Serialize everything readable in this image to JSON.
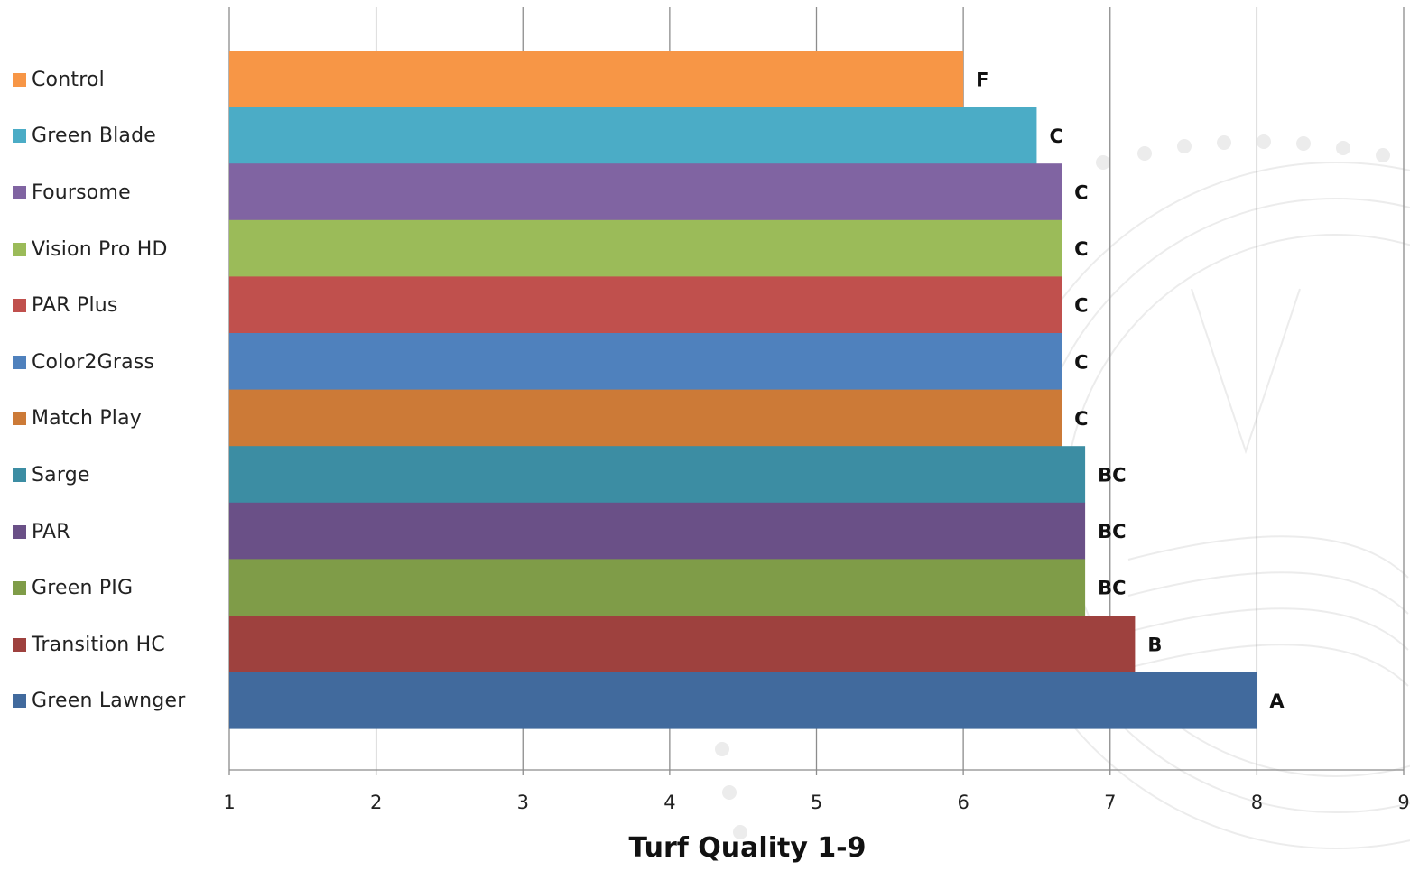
{
  "chart_data": {
    "type": "bar",
    "orientation": "horizontal",
    "title": "",
    "xlabel": "Turf Quality 1-9",
    "ylabel": "",
    "xlim": [
      1,
      9
    ],
    "x_ticks": [
      "1",
      "2",
      "3",
      "4",
      "5",
      "6",
      "7",
      "8",
      "9"
    ],
    "grid": "vertical",
    "legend_position": "left",
    "series": [
      {
        "name": "Control",
        "value": 6.0,
        "letter": "F",
        "color": "#F79646"
      },
      {
        "name": "Green Blade",
        "value": 6.5,
        "letter": "C",
        "color": "#4BACC6"
      },
      {
        "name": "Foursome",
        "value": 6.67,
        "letter": "C",
        "color": "#8064A2"
      },
      {
        "name": "Vision Pro HD",
        "value": 6.67,
        "letter": "C",
        "color": "#9BBB59"
      },
      {
        "name": "PAR Plus",
        "value": 6.67,
        "letter": "C",
        "color": "#C0504D"
      },
      {
        "name": "Color2Grass",
        "value": 6.67,
        "letter": "C",
        "color": "#4F81BD"
      },
      {
        "name": "Match Play",
        "value": 6.67,
        "letter": "C",
        "color": "#CC7A37"
      },
      {
        "name": "Sarge",
        "value": 6.83,
        "letter": "BC",
        "color": "#3C8DA3"
      },
      {
        "name": "PAR",
        "value": 6.83,
        "letter": "BC",
        "color": "#6A5087"
      },
      {
        "name": "Green PIG",
        "value": 6.83,
        "letter": "BC",
        "color": "#7F9C48"
      },
      {
        "name": "Transition HC",
        "value": 7.17,
        "letter": "B",
        "color": "#9E413E"
      },
      {
        "name": "Green Lawnger",
        "value": 8.0,
        "letter": "A",
        "color": "#416A9D"
      }
    ]
  }
}
